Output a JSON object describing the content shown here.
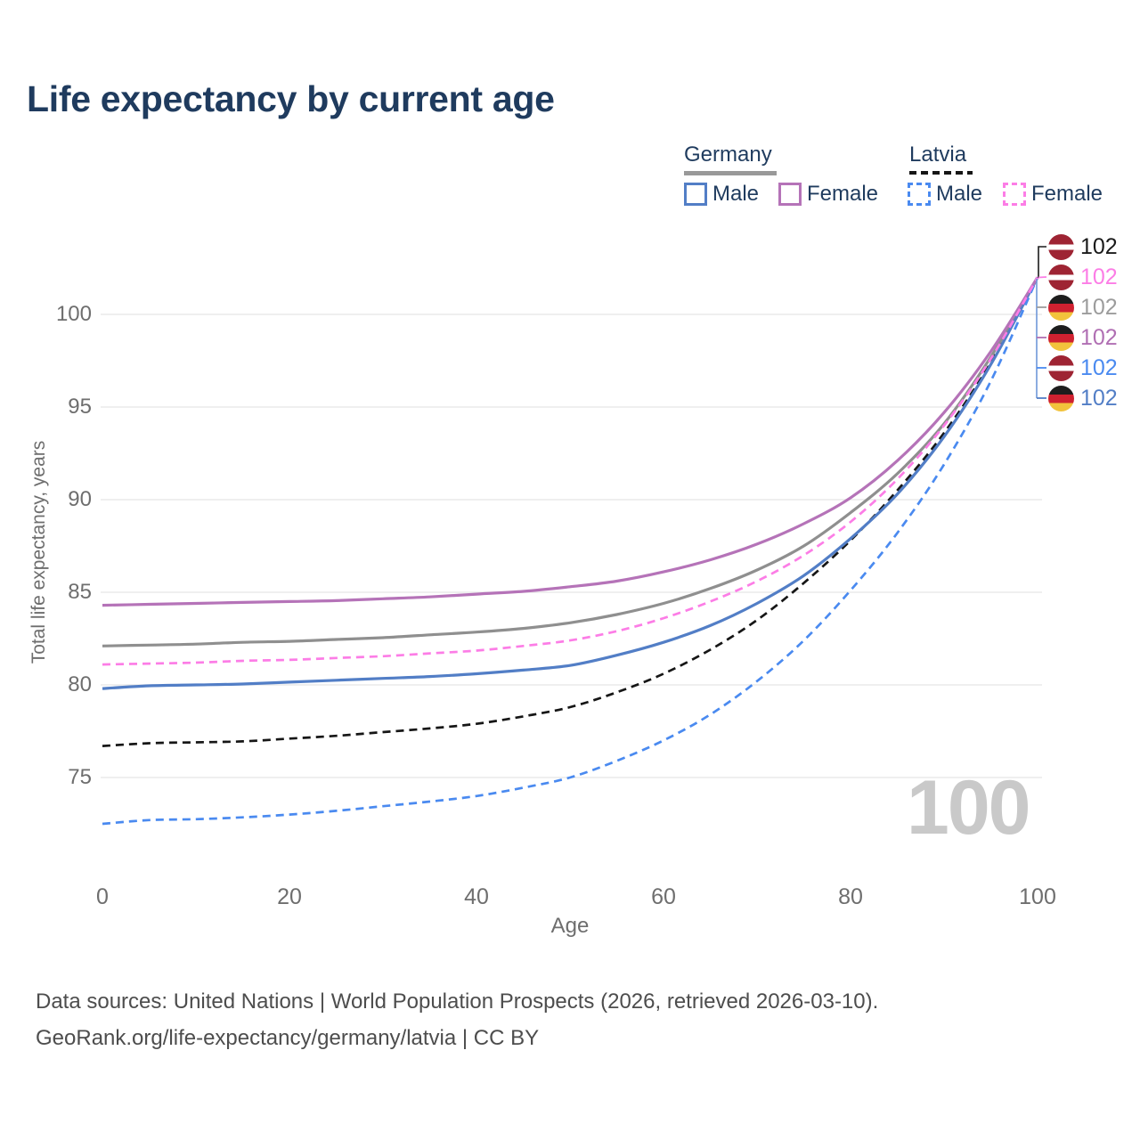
{
  "header": {
    "title": "Life expectancy by current age"
  },
  "legend": {
    "germany": {
      "label": "Germany",
      "male": "Male",
      "female": "Female"
    },
    "latvia": {
      "label": "Latvia",
      "male": "Male",
      "female": "Female"
    }
  },
  "watermark": {
    "value": "100"
  },
  "footer": {
    "line1": "Data sources: United Nations | World Population Prospects (2026, retrieved 2026-03-10).",
    "link": "GeoRank.org/life-expectancy/germany/latvia",
    "line2_suffix": " | CC BY"
  },
  "end_labels": [
    {
      "flag": "latvia",
      "value": "102",
      "color": "#1a1a1a"
    },
    {
      "flag": "latvia",
      "value": "102",
      "color": "#fc7de6"
    },
    {
      "flag": "germany",
      "value": "102",
      "color": "#9c9c9c"
    },
    {
      "flag": "germany",
      "value": "102",
      "color": "#b06fb3"
    },
    {
      "flag": "latvia",
      "value": "102",
      "color": "#4a8af0"
    },
    {
      "flag": "germany",
      "value": "102",
      "color": "#527ec6"
    }
  ],
  "chart_data": {
    "type": "line",
    "title": "Life expectancy by current age",
    "xlabel": "Age",
    "ylabel": "Total life expectancy, years",
    "xlim": [
      0,
      100
    ],
    "ylim": [
      71.5,
      103.5
    ],
    "xticks": [
      0,
      20,
      40,
      60,
      80,
      100
    ],
    "yticks": [
      75,
      80,
      85,
      90,
      95,
      100
    ],
    "grid": "horizontal",
    "legend_position": "top-right",
    "x": [
      0,
      5,
      10,
      15,
      20,
      25,
      30,
      35,
      40,
      45,
      50,
      55,
      60,
      65,
      70,
      75,
      80,
      85,
      90,
      95,
      100
    ],
    "series": [
      {
        "name": "Germany Female",
        "country": "germany",
        "style": "solid",
        "color": "#b573b8",
        "values": [
          84.3,
          84.35,
          84.4,
          84.45,
          84.5,
          84.55,
          84.65,
          84.75,
          84.9,
          85.05,
          85.3,
          85.6,
          86.1,
          86.75,
          87.6,
          88.7,
          90.1,
          92.1,
          94.7,
          98.0,
          102
        ]
      },
      {
        "name": "Germany",
        "country": "germany",
        "style": "solid",
        "color": "#8f8f8f",
        "values": [
          82.1,
          82.15,
          82.2,
          82.3,
          82.35,
          82.45,
          82.55,
          82.7,
          82.85,
          83.05,
          83.35,
          83.8,
          84.4,
          85.2,
          86.2,
          87.5,
          89.3,
          91.4,
          94.1,
          97.7,
          102
        ]
      },
      {
        "name": "Germany Male",
        "country": "germany",
        "style": "solid",
        "color": "#527ec6",
        "values": [
          79.8,
          79.95,
          80.0,
          80.05,
          80.15,
          80.25,
          80.35,
          80.45,
          80.6,
          80.8,
          81.05,
          81.6,
          82.3,
          83.2,
          84.4,
          85.9,
          87.9,
          90.3,
          93.4,
          97.3,
          102
        ]
      },
      {
        "name": "Latvia Female",
        "country": "latvia",
        "style": "dashed",
        "color": "#fc7de6",
        "values": [
          81.1,
          81.15,
          81.2,
          81.3,
          81.35,
          81.45,
          81.55,
          81.7,
          81.85,
          82.1,
          82.4,
          82.9,
          83.6,
          84.5,
          85.6,
          87.0,
          88.8,
          91.1,
          94.0,
          97.6,
          102
        ]
      },
      {
        "name": "Latvia",
        "country": "latvia",
        "style": "dashed",
        "color": "#161616",
        "values": [
          76.7,
          76.85,
          76.9,
          76.95,
          77.1,
          77.25,
          77.45,
          77.65,
          77.9,
          78.3,
          78.8,
          79.6,
          80.6,
          81.9,
          83.5,
          85.5,
          87.8,
          90.5,
          93.6,
          97.4,
          102
        ]
      },
      {
        "name": "Latvia Male",
        "country": "latvia",
        "style": "dashed",
        "color": "#4a8af0",
        "values": [
          72.5,
          72.7,
          72.75,
          72.85,
          73.0,
          73.2,
          73.45,
          73.7,
          74.0,
          74.45,
          75.0,
          75.9,
          77.0,
          78.4,
          80.2,
          82.4,
          85.1,
          88.2,
          91.9,
          96.4,
          102
        ]
      }
    ]
  }
}
